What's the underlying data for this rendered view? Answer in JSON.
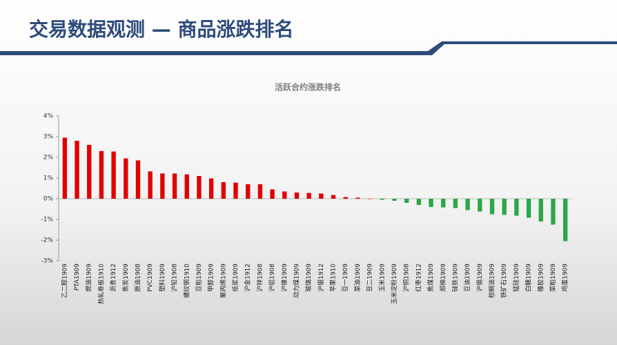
{
  "chart_data": {
    "type": "bar",
    "page_title": "交易数据观测 — 商品涨跌排名",
    "title": "活跃合约涨跌排名",
    "categories": [
      "乙二醇1909",
      "PTA1909",
      "燃油1909",
      "热轧卷板1910",
      "沥青1912",
      "焦炭1909",
      "原油1908",
      "PVC1909",
      "塑料1909",
      "沪铅1908",
      "螺纹钢1910",
      "豆粕1909",
      "甲醇1909",
      "聚丙烯1909",
      "纸浆1909",
      "沪金1912",
      "沪锌1908",
      "沪铝1908",
      "沪镍1909",
      "动力煤1909",
      "玻璃1909",
      "沪银1912",
      "苹果1910",
      "豆一1909",
      "菜油1909",
      "豆二1909",
      "玉米1909",
      "玉米淀粉1909",
      "沪铜1908",
      "红枣1912",
      "焦煤1909",
      "郑棉1909",
      "硅铁1909",
      "豆油1909",
      "沪锡1909",
      "棕榈油1909",
      "铁矿石1909",
      "锰硅1909",
      "白糖1909",
      "橡胶1909",
      "菜粕1909",
      "鸡蛋1909"
    ],
    "values": [
      2.95,
      2.8,
      2.6,
      2.3,
      2.28,
      1.95,
      1.85,
      1.32,
      1.22,
      1.22,
      1.18,
      1.1,
      0.98,
      0.8,
      0.78,
      0.7,
      0.7,
      0.45,
      0.35,
      0.3,
      0.28,
      0.25,
      0.18,
      0.08,
      0.05,
      0,
      -0.05,
      -0.1,
      -0.2,
      -0.3,
      -0.4,
      -0.42,
      -0.45,
      -0.55,
      -0.62,
      -0.75,
      -0.78,
      -0.82,
      -0.92,
      -1.1,
      -1.25,
      -2.05
    ],
    "positive_color": "#e00000",
    "negative_color": "#2aa748",
    "ylim": [
      -3,
      4
    ],
    "yticks": [
      {
        "value": -3,
        "label": "-3%"
      },
      {
        "value": -2,
        "label": "-2%"
      },
      {
        "value": -1,
        "label": "-1%"
      },
      {
        "value": 0,
        "label": "0%"
      },
      {
        "value": 1,
        "label": "1%"
      },
      {
        "value": 2,
        "label": "2%"
      },
      {
        "value": 3,
        "label": "3%"
      },
      {
        "value": 4,
        "label": "4%"
      }
    ]
  }
}
